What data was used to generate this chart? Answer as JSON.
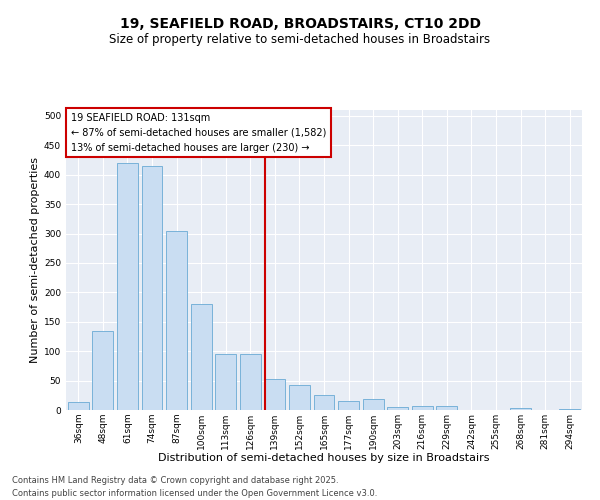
{
  "title": "19, SEAFIELD ROAD, BROADSTAIRS, CT10 2DD",
  "subtitle": "Size of property relative to semi-detached houses in Broadstairs",
  "xlabel": "Distribution of semi-detached houses by size in Broadstairs",
  "ylabel": "Number of semi-detached properties",
  "categories": [
    "36sqm",
    "48sqm",
    "61sqm",
    "74sqm",
    "87sqm",
    "100sqm",
    "113sqm",
    "126sqm",
    "139sqm",
    "152sqm",
    "165sqm",
    "177sqm",
    "190sqm",
    "203sqm",
    "216sqm",
    "229sqm",
    "242sqm",
    "255sqm",
    "268sqm",
    "281sqm",
    "294sqm"
  ],
  "values": [
    13,
    135,
    420,
    415,
    305,
    180,
    95,
    95,
    52,
    42,
    25,
    15,
    18,
    5,
    6,
    7,
    0,
    0,
    3,
    0,
    2
  ],
  "bar_color": "#c9ddf2",
  "bar_edge_color": "#6aaad4",
  "reference_line_color": "#cc0000",
  "annotation_box_facecolor": "#ffffff",
  "annotation_box_edgecolor": "#cc0000",
  "reference_line_label": "19 SEAFIELD ROAD: 131sqm",
  "annotation_line1": "← 87% of semi-detached houses are smaller (1,582)",
  "annotation_line2": "13% of semi-detached houses are larger (230) →",
  "ylim": [
    0,
    510
  ],
  "yticks": [
    0,
    50,
    100,
    150,
    200,
    250,
    300,
    350,
    400,
    450,
    500
  ],
  "plot_bg_color": "#e8edf5",
  "fig_bg_color": "#ffffff",
  "grid_color": "#ffffff",
  "footer_line1": "Contains HM Land Registry data © Crown copyright and database right 2025.",
  "footer_line2": "Contains public sector information licensed under the Open Government Licence v3.0.",
  "title_fontsize": 10,
  "subtitle_fontsize": 8.5,
  "axis_label_fontsize": 8,
  "tick_fontsize": 6.5,
  "annotation_fontsize": 7,
  "footer_fontsize": 6
}
